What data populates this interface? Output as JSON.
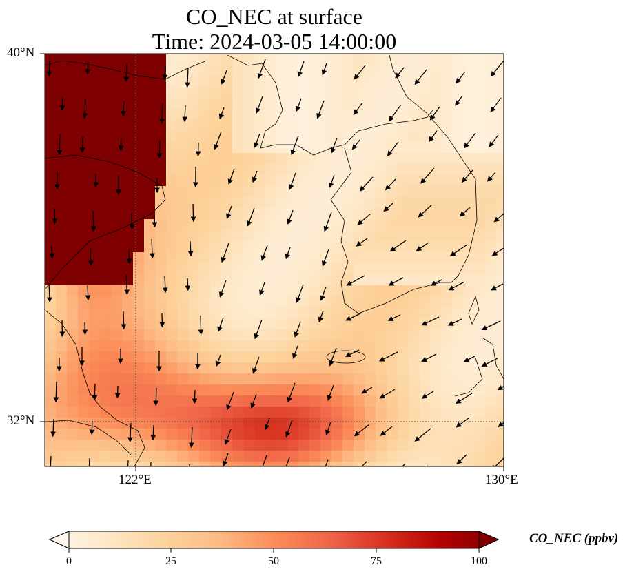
{
  "title": "CO_NEC at surface",
  "subtitle": "Time: 2024-03-05 14:00:00",
  "map": {
    "lon_range": [
      120,
      130
    ],
    "lat_range": [
      31,
      40
    ],
    "lat_ticks": [
      {
        "value": 40,
        "label": "40°N"
      },
      {
        "value": 32,
        "label": "32°N"
      }
    ],
    "lon_ticks": [
      {
        "value": 122,
        "label": "122°E"
      },
      {
        "value": 130,
        "label": "130°E"
      }
    ],
    "gridlines": "dotted at 122°E and 32°N"
  },
  "colorbar": {
    "label": "CO_NEC (ppbv)",
    "range": [
      0,
      100
    ],
    "ticks": [
      {
        "value": 0,
        "label": "0"
      },
      {
        "value": 25,
        "label": "25"
      },
      {
        "value": 50,
        "label": "50"
      },
      {
        "value": 75,
        "label": "75"
      },
      {
        "value": 100,
        "label": "100"
      }
    ],
    "colormap": "OrRd",
    "extend": "both"
  }
}
